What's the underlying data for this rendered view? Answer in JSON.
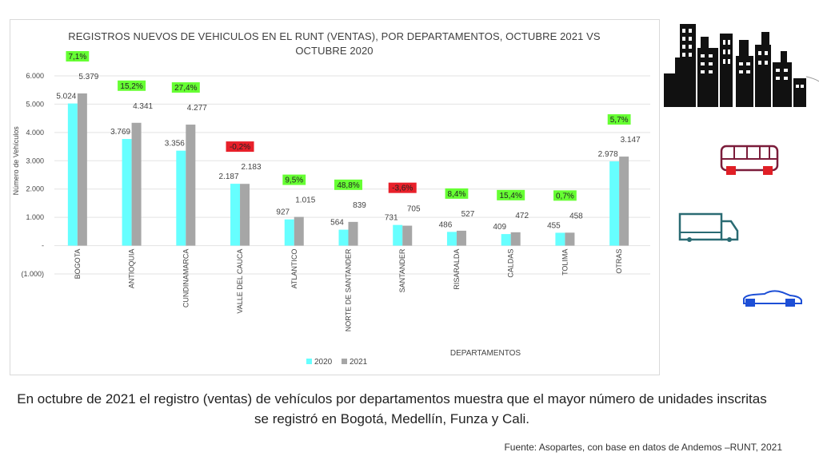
{
  "chart_data": {
    "type": "bar",
    "title": "REGISTROS NUEVOS DE VEHICULOS EN EL RUNT (VENTAS), POR DEPARTAMENTOS, OCTUBRE 2021 VS OCTUBRE 2020",
    "xlabel": "DEPARTAMENTOS",
    "ylabel": "Número de Vehículos",
    "ylim": [
      -1000,
      6000
    ],
    "y_ticks": [
      {
        "value": 6000,
        "label": "6.000"
      },
      {
        "value": 5000,
        "label": "5.000"
      },
      {
        "value": 4000,
        "label": "4.000"
      },
      {
        "value": 3000,
        "label": "3.000"
      },
      {
        "value": 2000,
        "label": "2.000"
      },
      {
        "value": 1000,
        "label": "1.000"
      },
      {
        "value": 0,
        "label": "-"
      },
      {
        "value": -1000,
        "label": "(1.000)"
      }
    ],
    "grid": true,
    "legend_position": "bottom",
    "categories": [
      "BOGOTA",
      "ANTIOQUIA",
      "CUNDINAMARCA",
      "VALLE DEL CAUCA",
      "ATLANTICO",
      "NORTE DE SANTANDER",
      "SANTANDER",
      "RISARALDA",
      "CALDAS",
      "TOLIMA",
      "OTRAS"
    ],
    "series": [
      {
        "name": "2020",
        "color": "#66ffff",
        "values": [
          5024,
          3769,
          3356,
          2187,
          927,
          564,
          731,
          486,
          409,
          455,
          2978
        ],
        "labels": [
          "5.024",
          "3.769",
          "3.356",
          "2.187",
          "927",
          "564",
          "731",
          "486",
          "409",
          "455",
          "2.978"
        ]
      },
      {
        "name": "2021",
        "color": "#a6a6a6",
        "values": [
          5379,
          4341,
          4277,
          2183,
          1015,
          839,
          705,
          527,
          472,
          458,
          3147
        ],
        "labels": [
          "5.379",
          "4.341",
          "4.277",
          "2.183",
          "1.015",
          "839",
          "705",
          "527",
          "472",
          "458",
          "3.147"
        ]
      }
    ],
    "growth": [
      "7,1%",
      "15,2%",
      "27,4%",
      "-0,2%",
      "9,5%",
      "48,8%",
      "-3,6%",
      "8,4%",
      "15,4%",
      "0,7%",
      "5,7%"
    ],
    "growth_colors": {
      "positive": "#66ff33",
      "negative": "#e8202a"
    }
  },
  "caption": "En octubre de 2021 el registro (ventas) de vehículos por departamentos muestra que el mayor número de unidades inscritas se registró en Bogotá, Medellín, Funza y Cali.",
  "source": "Fuente: Asopartes, con base en datos de Andemos –RUNT, 2021",
  "decorations": [
    "city-buildings-icon",
    "bus-icon",
    "truck-icon",
    "car-icon"
  ]
}
